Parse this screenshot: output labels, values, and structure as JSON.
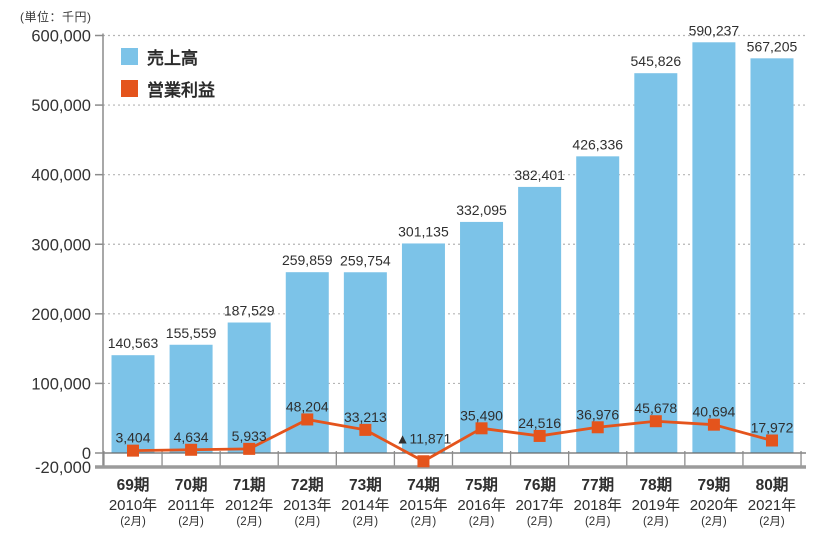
{
  "unit_label": "(単位：千円)",
  "colors": {
    "bar": "#7cc3e8",
    "line": "#e4541c",
    "marker": "#e4541c",
    "text": "#333333",
    "label_text": "#2f2f2f",
    "grid": "#b5b5b5",
    "axis": "#8c8c8c",
    "zero_line": "#6a6a6a",
    "bottom_line": "#9b9b9b"
  },
  "chart_data": {
    "type": "combo (bar + line)",
    "title": "",
    "ylabel": "(単位：千円)",
    "xlabel": "",
    "ylim": [
      -20000,
      600000
    ],
    "grid": "dotted horizontal gridlines every 100,000",
    "legend_position": "top-left inside plot area",
    "categories": [
      {
        "period": "69期",
        "year": "2010年",
        "month": "(2月)"
      },
      {
        "period": "70期",
        "year": "2011年",
        "month": "(2月)"
      },
      {
        "period": "71期",
        "year": "2012年",
        "month": "(2月)"
      },
      {
        "period": "72期",
        "year": "2013年",
        "month": "(2月)"
      },
      {
        "period": "73期",
        "year": "2014年",
        "month": "(2月)"
      },
      {
        "period": "74期",
        "year": "2015年",
        "month": "(2月)"
      },
      {
        "period": "75期",
        "year": "2016年",
        "month": "(2月)"
      },
      {
        "period": "76期",
        "year": "2017年",
        "month": "(2月)"
      },
      {
        "period": "77期",
        "year": "2018年",
        "month": "(2月)"
      },
      {
        "period": "78期",
        "year": "2019年",
        "month": "(2月)"
      },
      {
        "period": "79期",
        "year": "2020年",
        "month": "(2月)"
      },
      {
        "period": "80期",
        "year": "2021年",
        "month": "(2月)"
      }
    ],
    "series": [
      {
        "name": "売上高",
        "type": "bar",
        "values": [
          140563,
          155559,
          187529,
          259859,
          259754,
          301135,
          332095,
          382401,
          426336,
          545826,
          590237,
          567205
        ],
        "labels": [
          "140,563",
          "155,559",
          "187,529",
          "259,859",
          "259,754",
          "301,135",
          "332,095",
          "382,401",
          "426,336",
          "545,826",
          "590,237",
          "567,205"
        ]
      },
      {
        "name": "営業利益",
        "type": "line",
        "values": [
          3404,
          4634,
          5933,
          48204,
          33213,
          -11871,
          35490,
          24516,
          36976,
          45678,
          40694,
          17972
        ],
        "labels": [
          "3,404",
          "4,634",
          "5,933",
          "48,204",
          "33,213",
          "▲11,871",
          "35,490",
          "24,516",
          "36,976",
          "45,678",
          "40,694",
          "17,972"
        ]
      }
    ],
    "y_ticks": [
      {
        "label": "600,000",
        "value": 600000
      },
      {
        "label": "500,000",
        "value": 500000
      },
      {
        "label": "400,000",
        "value": 400000
      },
      {
        "label": "300,000",
        "value": 300000
      },
      {
        "label": "200,000",
        "value": 200000
      },
      {
        "label": "100,000",
        "value": 100000
      },
      {
        "label": "0",
        "value": 0
      },
      {
        "label": "-20,000",
        "value": -20000
      }
    ]
  }
}
